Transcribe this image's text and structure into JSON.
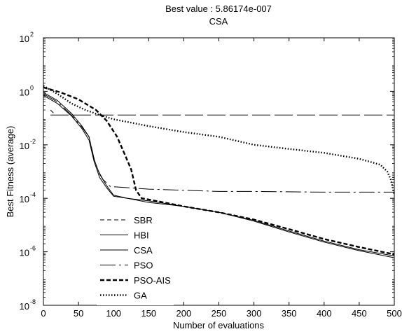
{
  "chart_data": {
    "type": "line",
    "title": "Best value : 5.86174e-007",
    "subtitle": "CSA",
    "xlabel": "Number of evaluations",
    "ylabel": "Best Fitness (average)",
    "x_scale": "linear",
    "y_scale": "log",
    "xlim": [
      0,
      500
    ],
    "ylim": [
      1e-08,
      100
    ],
    "x_ticks": [
      {
        "value": 0,
        "label": "0"
      },
      {
        "value": 50,
        "label": "50"
      },
      {
        "value": 100,
        "label": "100"
      },
      {
        "value": 150,
        "label": "150"
      },
      {
        "value": 200,
        "label": "200"
      },
      {
        "value": 250,
        "label": "250"
      },
      {
        "value": 300,
        "label": "300"
      },
      {
        "value": 350,
        "label": "350"
      },
      {
        "value": 400,
        "label": "400"
      },
      {
        "value": 450,
        "label": "450"
      },
      {
        "value": 500,
        "label": "500"
      }
    ],
    "y_ticks": [
      {
        "value": 1e-08,
        "base": "10",
        "exp": "-8"
      },
      {
        "value": 1e-06,
        "base": "10",
        "exp": "-6"
      },
      {
        "value": 0.0001,
        "base": "10",
        "exp": "-4"
      },
      {
        "value": 0.01,
        "base": "10",
        "exp": "-2"
      },
      {
        "value": 1,
        "base": "10",
        "exp": "0"
      },
      {
        "value": 100,
        "base": "10",
        "exp": "2"
      }
    ],
    "grid": false,
    "legend_position": "bottom-left",
    "series": [
      {
        "name": "SBR",
        "style": "dashed",
        "color": "#000000",
        "points": [
          [
            10,
            0.2
          ],
          [
            15,
            0.15
          ]
        ]
      },
      {
        "name": "HBI",
        "style": "solid",
        "color": "#000000",
        "points": [
          [
            0,
            0.9
          ],
          [
            20,
            0.45
          ],
          [
            40,
            0.15
          ],
          [
            55,
            0.05
          ],
          [
            65,
            0.02
          ],
          [
            72,
            0.003
          ],
          [
            80,
            0.0008
          ],
          [
            90,
            0.0003
          ],
          [
            100,
            0.00013
          ],
          [
            120,
            0.0001
          ],
          [
            150,
            8e-05
          ],
          [
            200,
            5e-05
          ],
          [
            250,
            3e-05
          ],
          [
            300,
            1.5e-05
          ],
          [
            350,
            6e-06
          ],
          [
            400,
            2.5e-06
          ],
          [
            450,
            1.2e-06
          ],
          [
            500,
            7e-07
          ]
        ]
      },
      {
        "name": "CSA",
        "style": "solid",
        "color": "#000000",
        "points": [
          [
            0,
            0.7
          ],
          [
            20,
            0.35
          ],
          [
            40,
            0.12
          ],
          [
            55,
            0.04
          ],
          [
            65,
            0.015
          ],
          [
            72,
            0.0025
          ],
          [
            80,
            0.0006
          ],
          [
            90,
            0.00025
          ],
          [
            100,
            0.00012
          ],
          [
            120,
            0.0001
          ],
          [
            150,
            7e-05
          ],
          [
            200,
            5e-05
          ],
          [
            250,
            3e-05
          ],
          [
            300,
            1.4e-05
          ],
          [
            350,
            5.5e-06
          ],
          [
            400,
            2.3e-06
          ],
          [
            450,
            1.1e-06
          ],
          [
            500,
            6e-07
          ]
        ]
      },
      {
        "name": "PSO",
        "style": "dashdot",
        "color": "#000000",
        "points": [
          [
            0,
            0.8
          ],
          [
            20,
            0.4
          ],
          [
            40,
            0.13
          ],
          [
            55,
            0.045
          ],
          [
            65,
            0.02
          ],
          [
            75,
            0.0015
          ],
          [
            85,
            0.0005
          ],
          [
            95,
            0.00028
          ],
          [
            100,
            0.00027
          ],
          [
            150,
            0.00022
          ],
          [
            200,
            0.0002
          ],
          [
            250,
            0.00018
          ],
          [
            300,
            0.00018
          ],
          [
            400,
            0.00017
          ],
          [
            500,
            0.00017
          ]
        ]
      },
      {
        "name": "PSO-AIS",
        "style": "bold-dashed",
        "color": "#000000",
        "points": [
          [
            0,
            1.4
          ],
          [
            25,
            0.9
          ],
          [
            50,
            0.5
          ],
          [
            75,
            0.2
          ],
          [
            90,
            0.08
          ],
          [
            105,
            0.02
          ],
          [
            115,
            0.005
          ],
          [
            125,
            0.0012
          ],
          [
            132,
            0.0002
          ],
          [
            140,
            0.0001
          ],
          [
            150,
            9e-05
          ],
          [
            200,
            5e-05
          ],
          [
            250,
            3e-05
          ],
          [
            300,
            1.6e-05
          ],
          [
            350,
            7e-06
          ],
          [
            400,
            3e-06
          ],
          [
            450,
            1.5e-06
          ],
          [
            500,
            8e-07
          ]
        ]
      },
      {
        "name": "GA",
        "style": "dotted",
        "color": "#000000",
        "points": [
          [
            0,
            1.6
          ],
          [
            20,
            0.8
          ],
          [
            40,
            0.35
          ],
          [
            60,
            0.2
          ],
          [
            80,
            0.13
          ],
          [
            100,
            0.09
          ],
          [
            150,
            0.05
          ],
          [
            200,
            0.03
          ],
          [
            250,
            0.02
          ],
          [
            300,
            0.01
          ],
          [
            350,
            0.007
          ],
          [
            400,
            0.005
          ],
          [
            450,
            0.003
          ],
          [
            480,
            0.0018
          ],
          [
            490,
            0.001
          ],
          [
            495,
            0.0005
          ],
          [
            500,
            0.00014
          ]
        ]
      },
      {
        "name": "",
        "style": "longdash",
        "color": "#000000",
        "points": [
          [
            10,
            0.13
          ],
          [
            500,
            0.13
          ]
        ]
      }
    ],
    "legend_entries": [
      "SBR",
      "HBI",
      "CSA",
      "PSO",
      "PSO-AIS",
      "GA"
    ]
  }
}
